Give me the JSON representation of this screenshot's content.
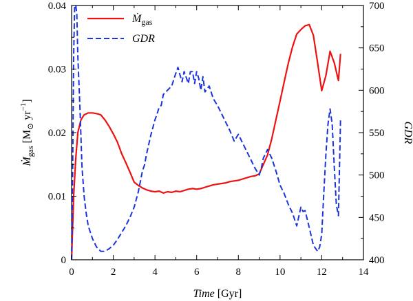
{
  "chart_data": {
    "type": "line",
    "title": "",
    "xlabel": {
      "name": "Time",
      "unit": "[Gyr]"
    },
    "ylabel_left": {
      "symbol": "Ṁ",
      "sub": "gas",
      "unit": "[M",
      "unit_sub": "⊙",
      "unit_tail": " yr",
      "unit_sup": "−1",
      "unit_close": "]"
    },
    "ylabel_right": "GDR",
    "xlim": [
      0,
      14
    ],
    "ylim_left": [
      0,
      0.04
    ],
    "ylim_right": [
      400,
      700
    ],
    "xticks": [
      0,
      2,
      4,
      6,
      8,
      10,
      12,
      14
    ],
    "xtick_labels": [
      "0",
      "2",
      "4",
      "6",
      "8",
      "10",
      "12",
      "14"
    ],
    "yticks_left": [
      0,
      0.01,
      0.02,
      0.03,
      0.04
    ],
    "ytick_labels_left": [
      "0",
      "0.01",
      "0.02",
      "0.03",
      "0.04"
    ],
    "yticks_right": [
      400,
      450,
      500,
      550,
      600,
      650,
      700
    ],
    "ytick_labels_right": [
      "400",
      "450",
      "500",
      "550",
      "600",
      "650",
      "700"
    ],
    "legend_position": "top-left",
    "series": [
      {
        "name": "Ṁgas",
        "legend_main": "Ṁ",
        "legend_sub": "gas",
        "axis": "left",
        "color": "#ee1111",
        "style": "solid",
        "x": [
          0.0,
          0.1,
          0.2,
          0.3,
          0.45,
          0.6,
          0.8,
          1.0,
          1.2,
          1.4,
          1.6,
          1.8,
          2.0,
          2.2,
          2.4,
          2.6,
          2.8,
          3.0,
          3.2,
          3.4,
          3.6,
          3.8,
          4.0,
          4.2,
          4.4,
          4.6,
          4.8,
          5.0,
          5.2,
          5.4,
          5.6,
          5.8,
          6.0,
          6.2,
          6.4,
          6.6,
          6.8,
          7.0,
          7.2,
          7.4,
          7.6,
          7.8,
          8.0,
          8.2,
          8.4,
          8.6,
          8.8,
          9.0,
          9.2,
          9.4,
          9.6,
          9.8,
          10.0,
          10.2,
          10.4,
          10.6,
          10.8,
          11.0,
          11.2,
          11.4,
          11.6,
          11.8,
          12.0,
          12.2,
          12.4,
          12.6,
          12.8,
          12.9
        ],
        "y": [
          0.0,
          0.01,
          0.016,
          0.02,
          0.022,
          0.0228,
          0.0231,
          0.0231,
          0.023,
          0.0228,
          0.022,
          0.021,
          0.0198,
          0.0185,
          0.0167,
          0.0153,
          0.0138,
          0.0122,
          0.0117,
          0.0113,
          0.011,
          0.0108,
          0.0107,
          0.0108,
          0.0105,
          0.0107,
          0.0106,
          0.0108,
          0.0107,
          0.0109,
          0.0111,
          0.0112,
          0.0111,
          0.0112,
          0.0114,
          0.0116,
          0.0118,
          0.0119,
          0.012,
          0.0121,
          0.0123,
          0.0124,
          0.0125,
          0.0127,
          0.0129,
          0.0131,
          0.0132,
          0.0135,
          0.015,
          0.0165,
          0.019,
          0.022,
          0.025,
          0.028,
          0.031,
          0.0335,
          0.0355,
          0.0362,
          0.0368,
          0.037,
          0.0353,
          0.031,
          0.0266,
          0.029,
          0.0328,
          0.031,
          0.0282,
          0.0324
        ]
      },
      {
        "name": "GDR",
        "legend_main": "GDR",
        "axis": "right",
        "color": "#1a33dd",
        "style": "dashed",
        "x": [
          0.0,
          0.05,
          0.1,
          0.15,
          0.2,
          0.25,
          0.3,
          0.4,
          0.5,
          0.6,
          0.7,
          0.8,
          1.0,
          1.2,
          1.4,
          1.6,
          1.8,
          2.0,
          2.2,
          2.4,
          2.6,
          2.8,
          3.0,
          3.2,
          3.4,
          3.5,
          3.6,
          3.8,
          4.0,
          4.1,
          4.2,
          4.3,
          4.4,
          4.6,
          4.8,
          5.0,
          5.1,
          5.2,
          5.3,
          5.4,
          5.5,
          5.6,
          5.7,
          5.8,
          5.9,
          6.0,
          6.1,
          6.2,
          6.3,
          6.4,
          6.6,
          6.8,
          7.0,
          7.2,
          7.4,
          7.6,
          7.8,
          8.0,
          8.2,
          8.4,
          8.6,
          8.8,
          9.0,
          9.1,
          9.2,
          9.4,
          9.6,
          9.8,
          10.0,
          10.2,
          10.4,
          10.6,
          10.8,
          11.0,
          11.1,
          11.2,
          11.4,
          11.6,
          11.8,
          11.9,
          12.0,
          12.1,
          12.2,
          12.3,
          12.4,
          12.5,
          12.6,
          12.7,
          12.8,
          12.9
        ],
        "y": [
          400,
          500,
          640,
          700,
          700,
          690,
          640,
          580,
          510,
          475,
          455,
          440,
          425,
          415,
          410,
          410,
          413,
          417,
          424,
          432,
          440,
          450,
          462,
          480,
          505,
          512,
          525,
          547,
          565,
          572,
          580,
          582,
          595,
          600,
          605,
          620,
          627,
          618,
          610,
          622,
          615,
          608,
          622,
          622,
          608,
          622,
          614,
          600,
          616,
          598,
          605,
          590,
          582,
          572,
          562,
          552,
          540,
          548,
          538,
          528,
          518,
          508,
          500,
          508,
          520,
          530,
          520,
          505,
          488,
          478,
          465,
          455,
          440,
          462,
          457,
          458,
          438,
          417,
          410,
          415,
          430,
          480,
          525,
          560,
          578,
          560,
          510,
          465,
          452,
          565
        ]
      }
    ]
  }
}
